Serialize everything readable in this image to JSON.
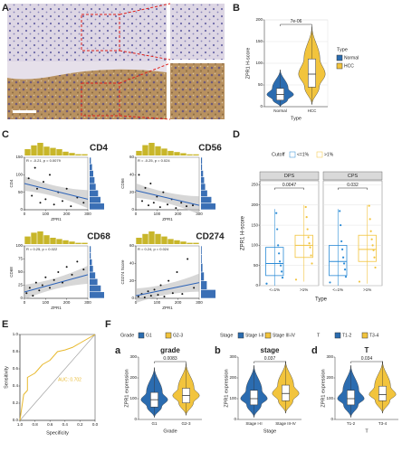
{
  "panel_labels": [
    "A",
    "B",
    "C",
    "D",
    "E",
    "F"
  ],
  "chart_data": [
    {
      "type": "violin",
      "ylabel": "ZPR1 H-score",
      "xlabel": "Type",
      "categories": [
        "Normal",
        "HCC"
      ],
      "colors": [
        "#2b6cb0",
        "#f2c43d"
      ],
      "legend_title": "Type",
      "annotation": "7e-06",
      "ylim": [
        0,
        200
      ],
      "yticks": [
        0,
        50,
        100,
        150,
        200
      ],
      "grid": true,
      "stats": [
        {
          "min": 0,
          "q1": 15,
          "median": 28,
          "q3": 42,
          "max": 85
        },
        {
          "min": 5,
          "q1": 45,
          "median": 75,
          "q3": 110,
          "max": 185
        }
      ]
    },
    {
      "type": "scatter",
      "title": "CD4",
      "annotation": "R = -0.21, p = 0.0079",
      "xlabel": "ZPR1",
      "ylabel": "CD4",
      "xlim": [
        0,
        300
      ],
      "ylim": [
        0,
        150
      ],
      "xticks": [
        0,
        100,
        200,
        300
      ],
      "yticks": [
        0,
        50,
        100,
        150
      ],
      "x": [
        20,
        35,
        50,
        60,
        75,
        90,
        100,
        120,
        140,
        160,
        180,
        200,
        220,
        250,
        280
      ],
      "y": [
        90,
        40,
        120,
        60,
        20,
        80,
        30,
        100,
        15,
        50,
        25,
        60,
        10,
        35,
        20
      ],
      "fit_line": {
        "x": [
          0,
          300
        ],
        "y": [
          75,
          30
        ]
      },
      "top_hist": [
        5,
        8,
        10,
        7,
        6,
        5,
        3,
        2,
        1,
        1
      ],
      "right_hist": [
        12,
        9,
        7,
        5,
        4,
        3,
        2,
        1
      ]
    },
    {
      "type": "scatter",
      "title": "CD56",
      "annotation": "R = -0.25, p = 0.024",
      "xlabel": "ZPR1",
      "ylabel": "CD56",
      "xlim": [
        0,
        300
      ],
      "ylim": [
        0,
        60
      ],
      "xticks": [
        0,
        100,
        200,
        300
      ],
      "yticks": [
        0,
        20,
        40,
        60
      ],
      "x": [
        15,
        30,
        45,
        60,
        70,
        85,
        100,
        115,
        130,
        150,
        170,
        190,
        215,
        240,
        270
      ],
      "y": [
        40,
        10,
        25,
        5,
        30,
        8,
        15,
        3,
        20,
        6,
        12,
        2,
        8,
        4,
        5
      ],
      "fit_line": {
        "x": [
          0,
          300
        ],
        "y": [
          22,
          5
        ]
      },
      "top_hist": [
        4,
        9,
        11,
        8,
        6,
        4,
        3,
        2,
        1,
        1
      ],
      "right_hist": [
        14,
        10,
        6,
        4,
        3,
        2,
        1,
        1
      ]
    },
    {
      "type": "scatter",
      "title": "CD68",
      "annotation": "R = 0.25, p = 0.022",
      "xlabel": "ZPR1",
      "ylabel": "CD68",
      "xlim": [
        0,
        300
      ],
      "ylim": [
        0,
        100
      ],
      "xticks": [
        0,
        100,
        200,
        300
      ],
      "yticks": [
        0,
        25,
        50,
        75,
        100
      ],
      "x": [
        10,
        25,
        40,
        55,
        70,
        85,
        100,
        120,
        140,
        160,
        180,
        200,
        225,
        250,
        280
      ],
      "y": [
        10,
        20,
        5,
        30,
        15,
        25,
        40,
        20,
        35,
        50,
        30,
        60,
        45,
        70,
        55
      ],
      "fit_line": {
        "x": [
          0,
          300
        ],
        "y": [
          12,
          45
        ]
      },
      "top_hist": [
        6,
        9,
        10,
        7,
        5,
        4,
        3,
        2,
        1,
        1
      ],
      "right_hist": [
        13,
        10,
        7,
        5,
        3,
        2,
        1,
        1
      ]
    },
    {
      "type": "scatter",
      "title": "CD274",
      "annotation": "R = 0.24, p = 0.024",
      "xlabel": "ZPR1",
      "ylabel": "CD274 Score",
      "xlim": [
        0,
        300
      ],
      "ylim": [
        0,
        60
      ],
      "xticks": [
        0,
        100,
        200,
        300
      ],
      "yticks": [
        0,
        20,
        40,
        60
      ],
      "x": [
        12,
        28,
        42,
        58,
        72,
        88,
        105,
        118,
        135,
        155,
        175,
        195,
        220,
        245,
        275
      ],
      "y": [
        2,
        5,
        1,
        8,
        3,
        10,
        4,
        15,
        2,
        20,
        6,
        30,
        5,
        45,
        12
      ],
      "fit_line": {
        "x": [
          0,
          300
        ],
        "y": [
          3,
          18
        ]
      },
      "top_hist": [
        5,
        8,
        10,
        8,
        6,
        4,
        3,
        2,
        1,
        1
      ],
      "right_hist": [
        20,
        8,
        4,
        2,
        1,
        1
      ]
    },
    {
      "type": "box",
      "legend_title": "Cutoff",
      "categories": [
        "<=1%",
        ">1%"
      ],
      "colors": [
        "#2b8bd6",
        "#f2c43d"
      ],
      "xlabel": "Type",
      "ylabel": "ZPR1 H-score",
      "ylim": [
        0,
        260
      ],
      "yticks": [
        0,
        50,
        100,
        150,
        200,
        250
      ],
      "grid": true,
      "facets": [
        {
          "name": "DPS",
          "annotation": "0.0047",
          "stats": [
            {
              "min": 0,
              "q1": 25,
              "median": 55,
              "q3": 95,
              "max": 190
            },
            {
              "min": 10,
              "q1": 70,
              "median": 100,
              "q3": 125,
              "max": 200
            }
          ],
          "points": [
            [
              5,
              20,
              35,
              50,
              60,
              80,
              100,
              140,
              180
            ],
            [
              15,
              55,
              75,
              95,
              105,
              120,
              140,
              170,
              195
            ]
          ]
        },
        {
          "name": "CPS",
          "annotation": "0.032",
          "stats": [
            {
              "min": 0,
              "q1": 25,
              "median": 60,
              "q3": 100,
              "max": 190
            },
            {
              "min": 5,
              "q1": 60,
              "median": 90,
              "q3": 125,
              "max": 200
            }
          ],
          "points": [
            [
              8,
              22,
              40,
              55,
              70,
              90,
              110,
              150,
              185
            ],
            [
              10,
              45,
              70,
              88,
              100,
              115,
              135,
              165,
              198
            ]
          ]
        }
      ]
    },
    {
      "type": "line",
      "annotation": "AUC: 0.702",
      "xlabel": "Specificity",
      "ylabel": "Sensitivity",
      "color": "#e8b92e",
      "xlim": [
        1,
        0
      ],
      "ylim": [
        0,
        1
      ],
      "xticks": [
        {
          "value": 1,
          "label": "1.0"
        },
        0.8,
        0.6,
        0.4,
        0.2,
        {
          "value": 0,
          "label": "0.0"
        }
      ],
      "yticks": [
        {
          "value": 0,
          "label": "0.0"
        },
        0.2,
        0.4,
        0.6,
        0.8,
        {
          "value": 1,
          "label": "1.0"
        }
      ],
      "x": [
        1,
        0.95,
        0.9,
        0.9,
        0.8,
        0.75,
        0.7,
        0.6,
        0.5,
        0.4,
        0.3,
        0.2,
        0.1,
        0
      ],
      "y": [
        0,
        0.3,
        0.35,
        0.5,
        0.55,
        0.6,
        0.65,
        0.7,
        0.8,
        0.82,
        0.85,
        0.9,
        0.95,
        1
      ]
    },
    {
      "type": "violin",
      "panel": "a",
      "title": "grade",
      "legend_title": "Grade",
      "categories": [
        "G1",
        "G2-3"
      ],
      "xlabel": "Grade",
      "ylabel": "ZPR1 expression",
      "colors": [
        "#2b6cb0",
        "#f2c43d"
      ],
      "annotation": "0.0083",
      "ylim": [
        0,
        300
      ],
      "yticks": [
        0,
        100,
        200,
        300
      ],
      "stats": [
        {
          "min": 10,
          "q1": 60,
          "median": 95,
          "q3": 130,
          "max": 250
        },
        {
          "min": 20,
          "q1": 80,
          "median": 115,
          "q3": 150,
          "max": 270
        }
      ]
    },
    {
      "type": "violin",
      "panel": "b",
      "title": "stage",
      "legend_title": "Stage",
      "categories": [
        "Stage I-II",
        "Stage III-IV"
      ],
      "xlabel": "Stage",
      "ylabel": "ZPR1 expression",
      "colors": [
        "#2b6cb0",
        "#f2c43d"
      ],
      "annotation": "0.037",
      "ylim": [
        0,
        300
      ],
      "yticks": [
        0,
        100,
        200,
        300
      ],
      "stats": [
        {
          "min": 10,
          "q1": 70,
          "median": 100,
          "q3": 140,
          "max": 260
        },
        {
          "min": 30,
          "q1": 90,
          "median": 125,
          "q3": 165,
          "max": 280
        }
      ]
    },
    {
      "type": "violin",
      "panel": "d",
      "title": "T",
      "legend_title": "T",
      "categories": [
        "T1-2",
        "T3-4"
      ],
      "xlabel": "T",
      "ylabel": "ZPR1 expression",
      "colors": [
        "#2b6cb0",
        "#f2c43d"
      ],
      "annotation": "0.034",
      "ylim": [
        0,
        300
      ],
      "yticks": [
        0,
        100,
        200,
        300
      ],
      "stats": [
        {
          "min": 10,
          "q1": 70,
          "median": 100,
          "q3": 140,
          "max": 260
        },
        {
          "min": 30,
          "q1": 90,
          "median": 120,
          "q3": 160,
          "max": 280
        }
      ]
    }
  ]
}
